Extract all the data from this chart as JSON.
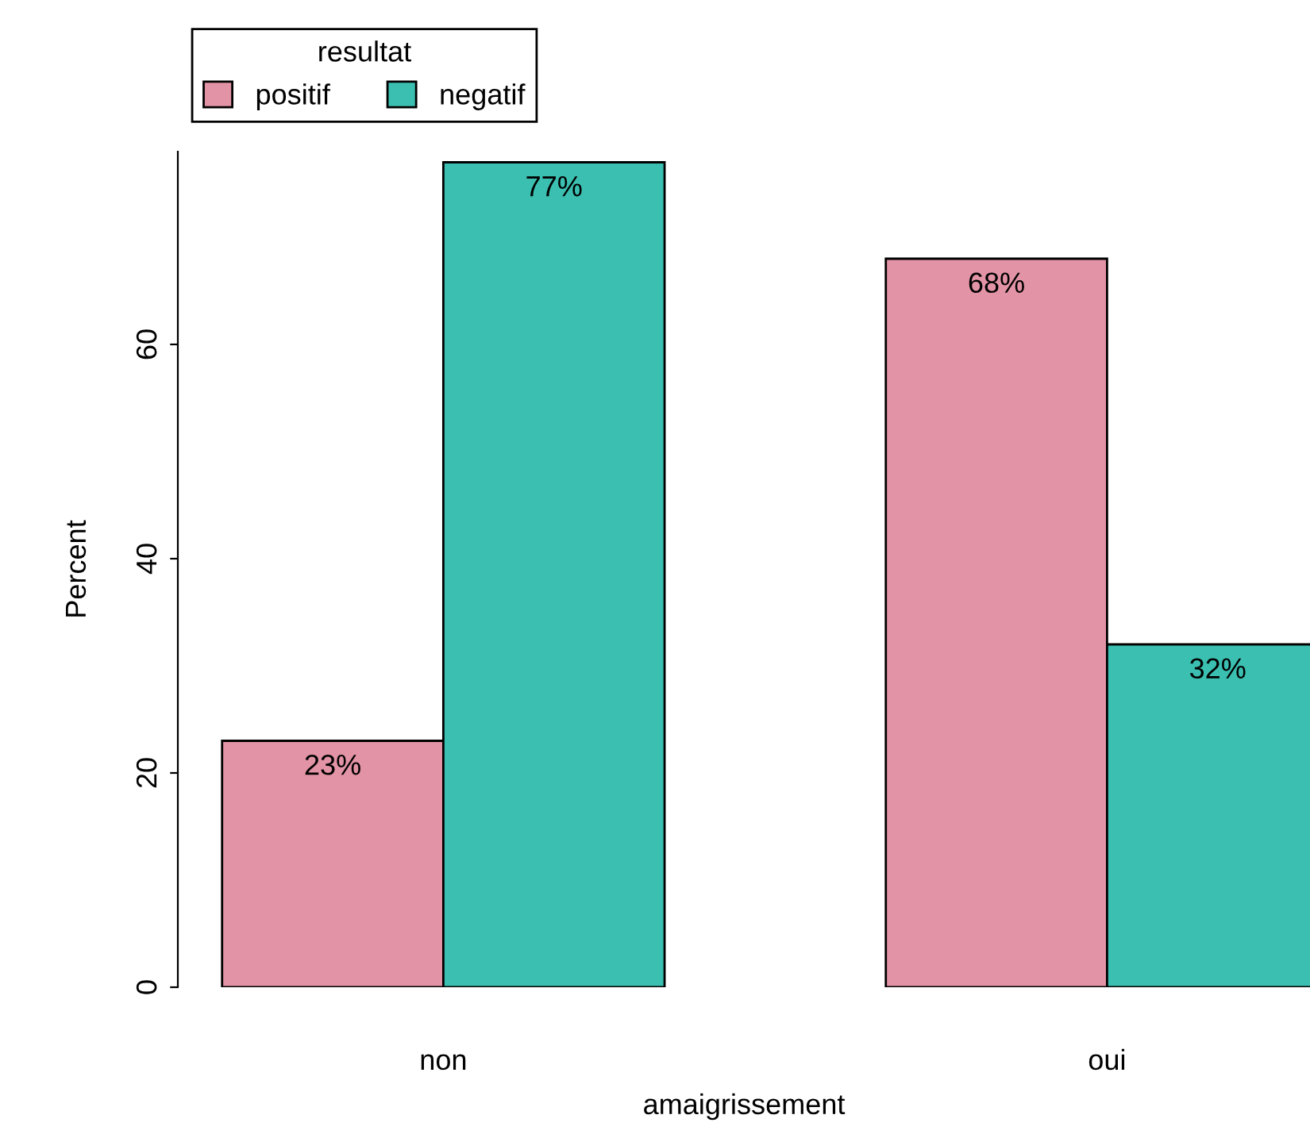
{
  "chart_data": {
    "type": "bar",
    "xlabel": "amaigrissement",
    "ylabel": "Percent",
    "legend_title": "resultat",
    "legend": "top left",
    "categories": [
      "non",
      "oui"
    ],
    "series": [
      {
        "name": "positif",
        "color": "#e293a5",
        "values": [
          23,
          68
        ],
        "value_labels": [
          "23%",
          "68%"
        ]
      },
      {
        "name": "negatif",
        "color": "#3bbfb1",
        "values": [
          77,
          32
        ],
        "value_labels": [
          "77%",
          "32%"
        ]
      }
    ],
    "ylim": [
      0,
      78
    ],
    "yticks": [
      0,
      20,
      40,
      60
    ],
    "grid": false
  }
}
